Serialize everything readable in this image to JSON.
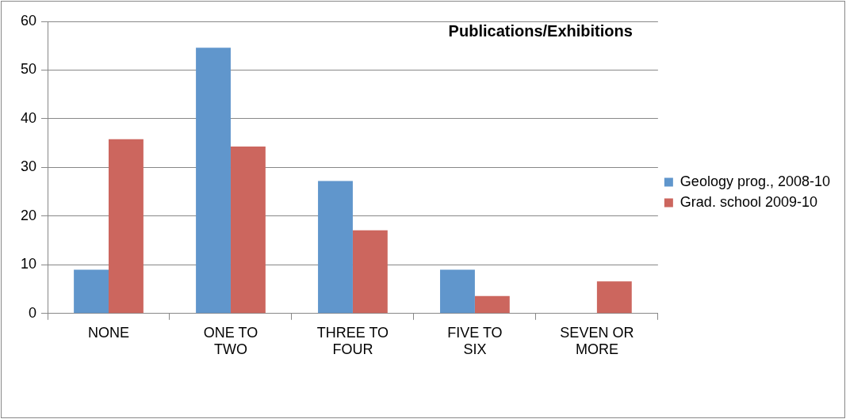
{
  "chart_data": {
    "type": "bar",
    "title": "Publications/Exhibitions",
    "categories": [
      "NONE",
      "ONE TO TWO",
      "THREE TO FOUR",
      "FIVE TO SIX",
      "SEVEN OR MORE"
    ],
    "series": [
      {
        "name": "Geology prog., 2008-10",
        "color": "#6096cc",
        "values": [
          9.0,
          54.6,
          27.2,
          9.0,
          0
        ]
      },
      {
        "name": "Grad. school 2009-10",
        "color": "#cc665e",
        "values": [
          35.8,
          34.3,
          17.1,
          3.6,
          6.6
        ]
      }
    ],
    "ylim": [
      0,
      60
    ],
    "yticks": [
      0,
      10,
      20,
      30,
      40,
      50,
      60
    ],
    "grid": "y",
    "legend": "right"
  }
}
